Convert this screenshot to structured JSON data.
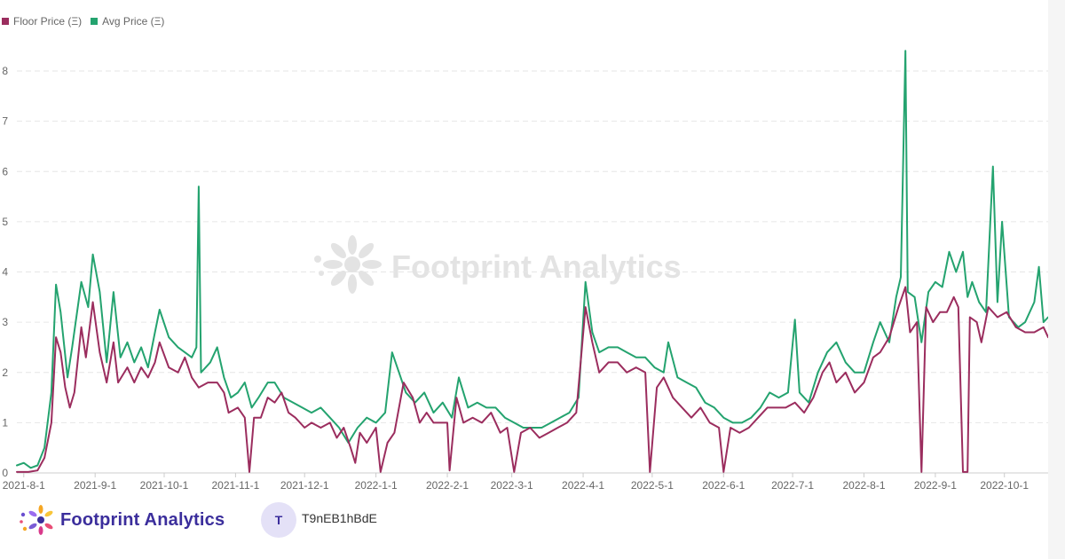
{
  "legend": {
    "floor_label": "Floor Price (Ξ)",
    "avg_label": "Avg Price (Ξ)"
  },
  "colors": {
    "floor": "#9b2d5e",
    "avg": "#24a36f",
    "grid": "#e6e6e6",
    "axis_text": "#666666",
    "watermark": "#e3e3e3"
  },
  "watermark": {
    "text": "Footprint Analytics",
    "icon": "footprint-flower-icon"
  },
  "footer": {
    "brand": "Footprint Analytics",
    "brand_icon": "footprint-flower-icon",
    "avatar_initial": "T",
    "author": "T9nEB1hBdE"
  },
  "chart_data": {
    "type": "line",
    "xlabel": "",
    "ylabel": "",
    "ylim": [
      0,
      8.5
    ],
    "yticks": [
      0,
      1,
      2,
      3,
      4,
      5,
      6,
      7,
      8
    ],
    "xlim": [
      "2021-07-29",
      "2022-10-20"
    ],
    "xticks": [
      "2021-8-1",
      "2021-9-1",
      "2021-10-1",
      "2021-11-1",
      "2021-12-1",
      "2022-1-1",
      "2022-2-1",
      "2022-3-1",
      "2022-4-1",
      "2022-5-1",
      "2022-6-1",
      "2022-7-1",
      "2022-8-1",
      "2022-9-1",
      "2022-10-1"
    ],
    "grid": "horizontal dashed",
    "legend_position": "top-left",
    "series": [
      {
        "name": "Floor Price (Ξ)",
        "color": "#9b2d5e",
        "points": [
          [
            "2021-07-29",
            0.02
          ],
          [
            "2021-08-03",
            0.02
          ],
          [
            "2021-08-07",
            0.05
          ],
          [
            "2021-08-10",
            0.3
          ],
          [
            "2021-08-13",
            1.0
          ],
          [
            "2021-08-15",
            2.7
          ],
          [
            "2021-08-17",
            2.4
          ],
          [
            "2021-08-19",
            1.7
          ],
          [
            "2021-08-21",
            1.3
          ],
          [
            "2021-08-23",
            1.6
          ],
          [
            "2021-08-26",
            2.9
          ],
          [
            "2021-08-28",
            2.3
          ],
          [
            "2021-08-31",
            3.4
          ],
          [
            "2021-09-03",
            2.4
          ],
          [
            "2021-09-06",
            1.8
          ],
          [
            "2021-09-09",
            2.6
          ],
          [
            "2021-09-11",
            1.8
          ],
          [
            "2021-09-15",
            2.1
          ],
          [
            "2021-09-18",
            1.8
          ],
          [
            "2021-09-21",
            2.1
          ],
          [
            "2021-09-24",
            1.9
          ],
          [
            "2021-09-27",
            2.2
          ],
          [
            "2021-09-29",
            2.6
          ],
          [
            "2021-10-03",
            2.1
          ],
          [
            "2021-10-07",
            2.0
          ],
          [
            "2021-10-10",
            2.3
          ],
          [
            "2021-10-13",
            1.9
          ],
          [
            "2021-10-16",
            1.7
          ],
          [
            "2021-10-20",
            1.8
          ],
          [
            "2021-10-24",
            1.8
          ],
          [
            "2021-10-27",
            1.6
          ],
          [
            "2021-10-29",
            1.2
          ],
          [
            "2021-11-02",
            1.3
          ],
          [
            "2021-11-05",
            1.1
          ],
          [
            "2021-11-07",
            0.02
          ],
          [
            "2021-11-09",
            1.1
          ],
          [
            "2021-11-12",
            1.1
          ],
          [
            "2021-11-15",
            1.5
          ],
          [
            "2021-11-18",
            1.4
          ],
          [
            "2021-11-21",
            1.6
          ],
          [
            "2021-11-24",
            1.2
          ],
          [
            "2021-11-27",
            1.1
          ],
          [
            "2021-12-01",
            0.9
          ],
          [
            "2021-12-04",
            1.0
          ],
          [
            "2021-12-08",
            0.9
          ],
          [
            "2021-12-12",
            1.0
          ],
          [
            "2021-12-15",
            0.7
          ],
          [
            "2021-12-18",
            0.9
          ],
          [
            "2021-12-21",
            0.5
          ],
          [
            "2021-12-23",
            0.2
          ],
          [
            "2021-12-25",
            0.8
          ],
          [
            "2021-12-28",
            0.6
          ],
          [
            "2022-01-01",
            0.9
          ],
          [
            "2022-01-03",
            0.02
          ],
          [
            "2022-01-06",
            0.6
          ],
          [
            "2022-01-09",
            0.8
          ],
          [
            "2022-01-13",
            1.8
          ],
          [
            "2022-01-17",
            1.5
          ],
          [
            "2022-01-20",
            1.0
          ],
          [
            "2022-01-23",
            1.2
          ],
          [
            "2022-01-26",
            1.0
          ],
          [
            "2022-01-29",
            1.0
          ],
          [
            "2022-02-01",
            1.0
          ],
          [
            "2022-02-02",
            0.05
          ],
          [
            "2022-02-05",
            1.5
          ],
          [
            "2022-02-08",
            1.0
          ],
          [
            "2022-02-12",
            1.1
          ],
          [
            "2022-02-16",
            1.0
          ],
          [
            "2022-02-20",
            1.2
          ],
          [
            "2022-02-24",
            0.8
          ],
          [
            "2022-02-27",
            0.9
          ],
          [
            "2022-03-02",
            0.02
          ],
          [
            "2022-03-05",
            0.8
          ],
          [
            "2022-03-09",
            0.9
          ],
          [
            "2022-03-13",
            0.7
          ],
          [
            "2022-03-17",
            0.8
          ],
          [
            "2022-03-21",
            0.9
          ],
          [
            "2022-03-25",
            1.0
          ],
          [
            "2022-03-29",
            1.2
          ],
          [
            "2022-04-02",
            3.3
          ],
          [
            "2022-04-05",
            2.6
          ],
          [
            "2022-04-08",
            2.0
          ],
          [
            "2022-04-12",
            2.2
          ],
          [
            "2022-04-16",
            2.2
          ],
          [
            "2022-04-20",
            2.0
          ],
          [
            "2022-04-24",
            2.1
          ],
          [
            "2022-04-28",
            2.0
          ],
          [
            "2022-04-30",
            0.02
          ],
          [
            "2022-05-03",
            1.7
          ],
          [
            "2022-05-06",
            1.9
          ],
          [
            "2022-05-10",
            1.5
          ],
          [
            "2022-05-14",
            1.3
          ],
          [
            "2022-05-18",
            1.1
          ],
          [
            "2022-05-22",
            1.3
          ],
          [
            "2022-05-26",
            1.0
          ],
          [
            "2022-05-30",
            0.9
          ],
          [
            "2022-06-01",
            0.02
          ],
          [
            "2022-06-04",
            0.9
          ],
          [
            "2022-06-08",
            0.8
          ],
          [
            "2022-06-12",
            0.9
          ],
          [
            "2022-06-16",
            1.1
          ],
          [
            "2022-06-20",
            1.3
          ],
          [
            "2022-06-24",
            1.3
          ],
          [
            "2022-06-28",
            1.3
          ],
          [
            "2022-07-02",
            1.4
          ],
          [
            "2022-07-06",
            1.2
          ],
          [
            "2022-07-10",
            1.5
          ],
          [
            "2022-07-14",
            2.0
          ],
          [
            "2022-07-17",
            2.2
          ],
          [
            "2022-07-20",
            1.8
          ],
          [
            "2022-07-24",
            2.0
          ],
          [
            "2022-07-28",
            1.6
          ],
          [
            "2022-08-01",
            1.8
          ],
          [
            "2022-08-05",
            2.3
          ],
          [
            "2022-08-08",
            2.4
          ],
          [
            "2022-08-12",
            2.7
          ],
          [
            "2022-08-16",
            3.3
          ],
          [
            "2022-08-19",
            3.7
          ],
          [
            "2022-08-21",
            2.8
          ],
          [
            "2022-08-24",
            3.0
          ],
          [
            "2022-08-26",
            0.02
          ],
          [
            "2022-08-28",
            3.3
          ],
          [
            "2022-08-31",
            3.0
          ],
          [
            "2022-09-03",
            3.2
          ],
          [
            "2022-09-06",
            3.2
          ],
          [
            "2022-09-09",
            3.5
          ],
          [
            "2022-09-11",
            3.3
          ],
          [
            "2022-09-13",
            0.02
          ],
          [
            "2022-09-15",
            0.02
          ],
          [
            "2022-09-16",
            3.1
          ],
          [
            "2022-09-19",
            3.0
          ],
          [
            "2022-09-21",
            2.6
          ],
          [
            "2022-09-24",
            3.3
          ],
          [
            "2022-09-28",
            3.1
          ],
          [
            "2022-10-02",
            3.2
          ],
          [
            "2022-10-06",
            2.9
          ],
          [
            "2022-10-10",
            2.8
          ],
          [
            "2022-10-14",
            2.8
          ],
          [
            "2022-10-18",
            2.9
          ],
          [
            "2022-10-20",
            2.7
          ]
        ]
      },
      {
        "name": "Avg Price (Ξ)",
        "color": "#24a36f",
        "points": [
          [
            "2021-07-29",
            0.15
          ],
          [
            "2021-08-01",
            0.2
          ],
          [
            "2021-08-04",
            0.1
          ],
          [
            "2021-08-07",
            0.15
          ],
          [
            "2021-08-10",
            0.5
          ],
          [
            "2021-08-13",
            1.6
          ],
          [
            "2021-08-15",
            3.75
          ],
          [
            "2021-08-17",
            3.2
          ],
          [
            "2021-08-20",
            1.9
          ],
          [
            "2021-08-22",
            2.5
          ],
          [
            "2021-08-26",
            3.8
          ],
          [
            "2021-08-29",
            3.3
          ],
          [
            "2021-08-31",
            4.35
          ],
          [
            "2021-09-03",
            3.6
          ],
          [
            "2021-09-06",
            2.2
          ],
          [
            "2021-09-09",
            3.6
          ],
          [
            "2021-09-12",
            2.3
          ],
          [
            "2021-09-15",
            2.6
          ],
          [
            "2021-09-18",
            2.2
          ],
          [
            "2021-09-21",
            2.5
          ],
          [
            "2021-09-24",
            2.1
          ],
          [
            "2021-09-27",
            2.8
          ],
          [
            "2021-09-29",
            3.25
          ],
          [
            "2021-10-03",
            2.7
          ],
          [
            "2021-10-07",
            2.5
          ],
          [
            "2021-10-10",
            2.4
          ],
          [
            "2021-10-13",
            2.3
          ],
          [
            "2021-10-15",
            2.5
          ],
          [
            "2021-10-16",
            5.7
          ],
          [
            "2021-10-17",
            2.0
          ],
          [
            "2021-10-21",
            2.2
          ],
          [
            "2021-10-24",
            2.5
          ],
          [
            "2021-10-27",
            1.9
          ],
          [
            "2021-10-30",
            1.5
          ],
          [
            "2021-11-02",
            1.6
          ],
          [
            "2021-11-05",
            1.8
          ],
          [
            "2021-11-08",
            1.3
          ],
          [
            "2021-11-11",
            1.5
          ],
          [
            "2021-11-15",
            1.8
          ],
          [
            "2021-11-18",
            1.8
          ],
          [
            "2021-11-22",
            1.5
          ],
          [
            "2021-11-26",
            1.4
          ],
          [
            "2021-11-30",
            1.3
          ],
          [
            "2021-12-04",
            1.2
          ],
          [
            "2021-12-08",
            1.3
          ],
          [
            "2021-12-12",
            1.1
          ],
          [
            "2021-12-16",
            0.9
          ],
          [
            "2021-12-20",
            0.6
          ],
          [
            "2021-12-24",
            0.9
          ],
          [
            "2021-12-28",
            1.1
          ],
          [
            "2022-01-01",
            1.0
          ],
          [
            "2022-01-05",
            1.2
          ],
          [
            "2022-01-08",
            2.4
          ],
          [
            "2022-01-11",
            2.0
          ],
          [
            "2022-01-14",
            1.6
          ],
          [
            "2022-01-18",
            1.4
          ],
          [
            "2022-01-22",
            1.6
          ],
          [
            "2022-01-26",
            1.2
          ],
          [
            "2022-01-30",
            1.4
          ],
          [
            "2022-02-03",
            1.1
          ],
          [
            "2022-02-06",
            1.9
          ],
          [
            "2022-02-10",
            1.3
          ],
          [
            "2022-02-14",
            1.4
          ],
          [
            "2022-02-18",
            1.3
          ],
          [
            "2022-02-22",
            1.3
          ],
          [
            "2022-02-26",
            1.1
          ],
          [
            "2022-03-02",
            1.0
          ],
          [
            "2022-03-06",
            0.9
          ],
          [
            "2022-03-10",
            0.9
          ],
          [
            "2022-03-14",
            0.9
          ],
          [
            "2022-03-18",
            1.0
          ],
          [
            "2022-03-22",
            1.1
          ],
          [
            "2022-03-26",
            1.2
          ],
          [
            "2022-03-30",
            1.5
          ],
          [
            "2022-04-02",
            3.8
          ],
          [
            "2022-04-05",
            2.8
          ],
          [
            "2022-04-08",
            2.4
          ],
          [
            "2022-04-12",
            2.5
          ],
          [
            "2022-04-16",
            2.5
          ],
          [
            "2022-04-20",
            2.4
          ],
          [
            "2022-04-24",
            2.3
          ],
          [
            "2022-04-28",
            2.3
          ],
          [
            "2022-05-02",
            2.1
          ],
          [
            "2022-05-06",
            2.0
          ],
          [
            "2022-05-08",
            2.6
          ],
          [
            "2022-05-12",
            1.9
          ],
          [
            "2022-05-16",
            1.8
          ],
          [
            "2022-05-20",
            1.7
          ],
          [
            "2022-05-24",
            1.4
          ],
          [
            "2022-05-28",
            1.3
          ],
          [
            "2022-06-01",
            1.1
          ],
          [
            "2022-06-05",
            1.0
          ],
          [
            "2022-06-09",
            1.0
          ],
          [
            "2022-06-13",
            1.1
          ],
          [
            "2022-06-17",
            1.3
          ],
          [
            "2022-06-21",
            1.6
          ],
          [
            "2022-06-25",
            1.5
          ],
          [
            "2022-06-29",
            1.6
          ],
          [
            "2022-07-02",
            3.05
          ],
          [
            "2022-07-04",
            1.6
          ],
          [
            "2022-07-08",
            1.4
          ],
          [
            "2022-07-12",
            2.0
          ],
          [
            "2022-07-16",
            2.4
          ],
          [
            "2022-07-20",
            2.6
          ],
          [
            "2022-07-24",
            2.2
          ],
          [
            "2022-07-28",
            2.0
          ],
          [
            "2022-08-01",
            2.0
          ],
          [
            "2022-08-05",
            2.6
          ],
          [
            "2022-08-08",
            3.0
          ],
          [
            "2022-08-12",
            2.6
          ],
          [
            "2022-08-15",
            3.5
          ],
          [
            "2022-08-17",
            3.9
          ],
          [
            "2022-08-19",
            8.4
          ],
          [
            "2022-08-20",
            3.6
          ],
          [
            "2022-08-23",
            3.5
          ],
          [
            "2022-08-26",
            2.6
          ],
          [
            "2022-08-29",
            3.6
          ],
          [
            "2022-09-01",
            3.8
          ],
          [
            "2022-09-04",
            3.7
          ],
          [
            "2022-09-07",
            4.4
          ],
          [
            "2022-09-10",
            4.0
          ],
          [
            "2022-09-13",
            4.4
          ],
          [
            "2022-09-15",
            3.5
          ],
          [
            "2022-09-17",
            3.8
          ],
          [
            "2022-09-20",
            3.4
          ],
          [
            "2022-09-23",
            3.2
          ],
          [
            "2022-09-26",
            6.1
          ],
          [
            "2022-09-28",
            3.4
          ],
          [
            "2022-09-30",
            5.0
          ],
          [
            "2022-10-03",
            3.1
          ],
          [
            "2022-10-07",
            2.9
          ],
          [
            "2022-10-10",
            3.0
          ],
          [
            "2022-10-14",
            3.4
          ],
          [
            "2022-10-16",
            4.1
          ],
          [
            "2022-10-18",
            3.0
          ],
          [
            "2022-10-20",
            3.1
          ]
        ]
      }
    ]
  }
}
